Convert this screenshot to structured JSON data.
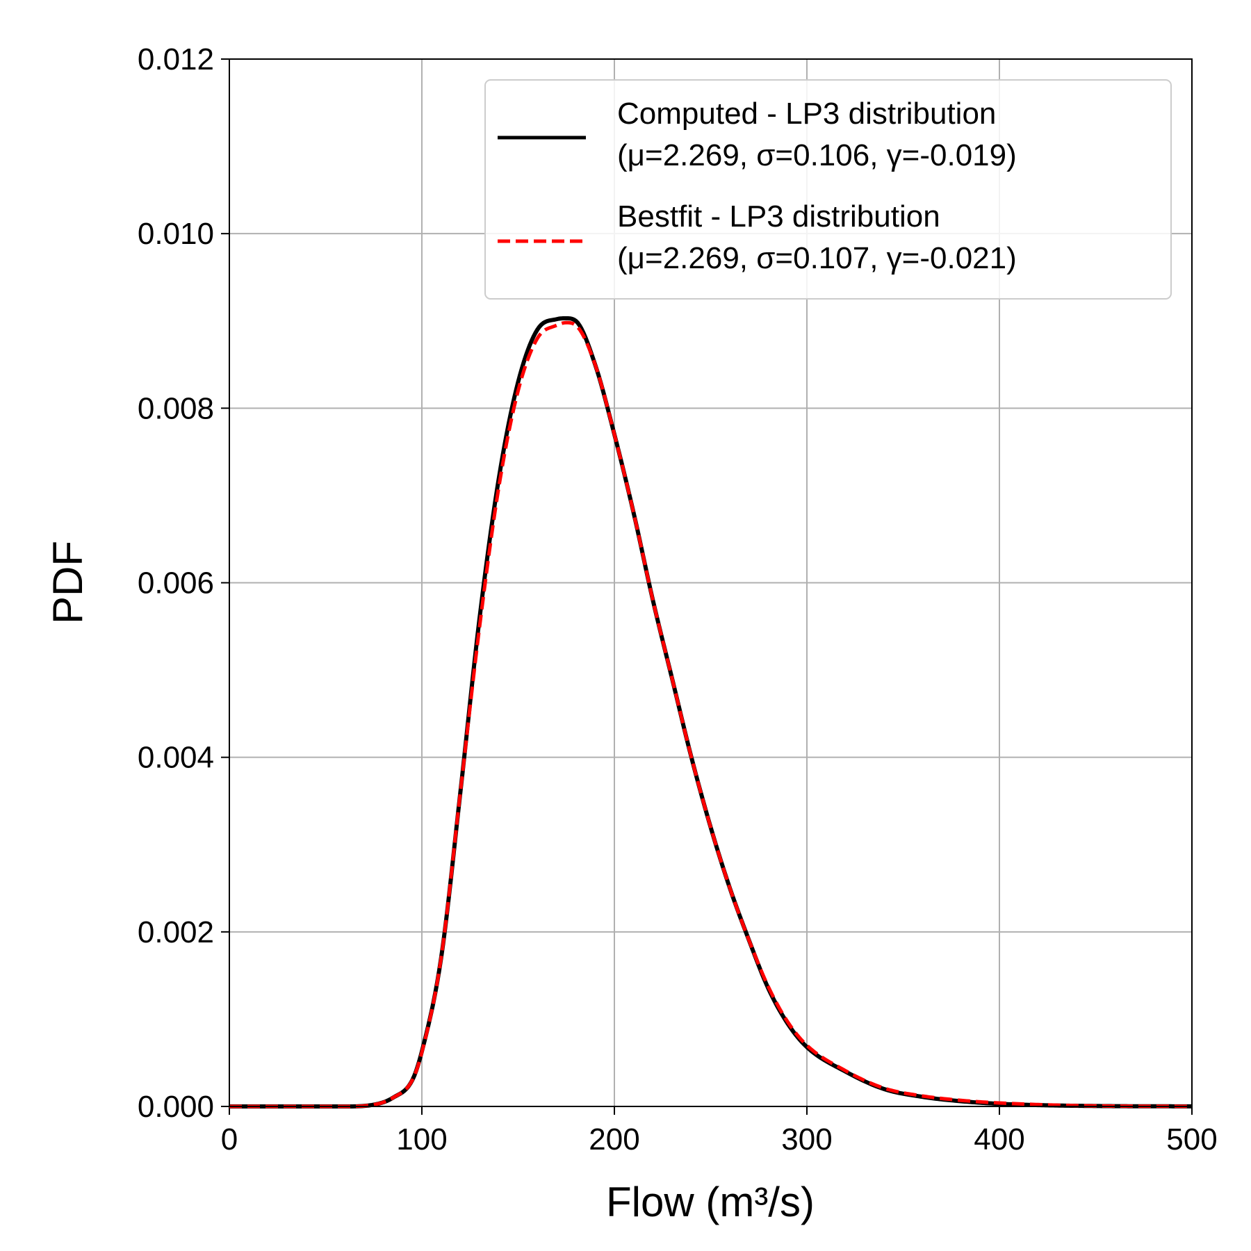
{
  "chart_data": {
    "type": "line",
    "xlabel": "Flow (m³/s)",
    "ylabel": "PDF",
    "xlim": [
      0,
      500
    ],
    "ylim": [
      0,
      0.012
    ],
    "x_ticks": [
      "0",
      "100",
      "200",
      "300",
      "400",
      "500"
    ],
    "y_ticks": [
      "0.000",
      "0.002",
      "0.004",
      "0.006",
      "0.008",
      "0.010",
      "0.012"
    ],
    "grid": true,
    "legend_position": "top-right",
    "x": [
      0,
      60,
      75,
      85,
      95,
      100,
      110,
      120,
      130,
      140,
      150,
      160,
      170,
      175,
      180,
      190,
      200,
      210,
      220,
      230,
      240,
      250,
      260,
      270,
      280,
      290,
      300,
      320,
      340,
      360,
      380,
      400,
      450,
      500
    ],
    "series": [
      {
        "name_line1": "Computed - LP3 distribution",
        "name_line2": "(μ=2.269, σ=0.106, γ=-0.019)",
        "color": "#000000",
        "style": "solid",
        "values": [
          0,
          0,
          2e-05,
          0.0001,
          0.0003,
          0.00063,
          0.0017,
          0.0036,
          0.0056,
          0.0072,
          0.0083,
          0.0089,
          0.00902,
          0.00903,
          0.009,
          0.0085,
          0.0077,
          0.0068,
          0.0058,
          0.0049,
          0.004,
          0.0032,
          0.0025,
          0.0019,
          0.00135,
          0.00095,
          0.00068,
          0.0004,
          0.0002,
          0.00011,
          6e-05,
          3e-05,
          5e-06,
          1e-06
        ]
      },
      {
        "name_line1": "Bestfit - LP3 distribution",
        "name_line2": "(μ=2.269, σ=0.107, γ=-0.021)",
        "color": "#ff0000",
        "style": "dashed",
        "values": [
          0,
          0,
          2e-05,
          0.0001,
          0.0003,
          0.00062,
          0.0017,
          0.0036,
          0.0055,
          0.0071,
          0.0082,
          0.0088,
          0.00895,
          0.00898,
          0.00895,
          0.0085,
          0.0077,
          0.0068,
          0.0058,
          0.0049,
          0.004,
          0.0032,
          0.0025,
          0.0019,
          0.00137,
          0.00097,
          0.0007,
          0.00041,
          0.00021,
          0.00012,
          7e-05,
          4e-05,
          6e-06,
          1e-06
        ]
      }
    ]
  }
}
